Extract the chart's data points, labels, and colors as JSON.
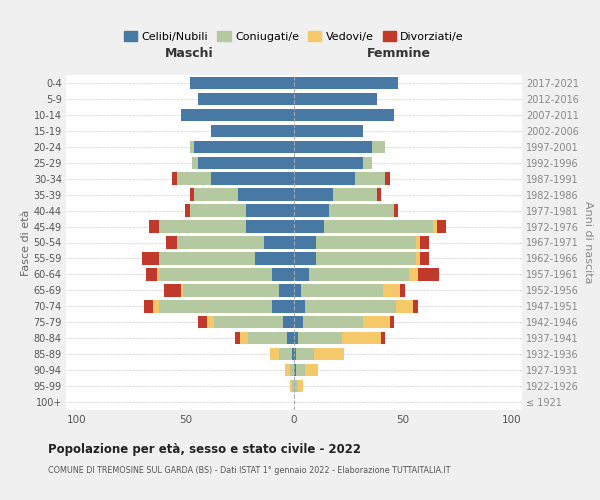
{
  "age_groups": [
    "100+",
    "95-99",
    "90-94",
    "85-89",
    "80-84",
    "75-79",
    "70-74",
    "65-69",
    "60-64",
    "55-59",
    "50-54",
    "45-49",
    "40-44",
    "35-39",
    "30-34",
    "25-29",
    "20-24",
    "15-19",
    "10-14",
    "5-9",
    "0-4"
  ],
  "birth_years": [
    "≤ 1921",
    "1922-1926",
    "1927-1931",
    "1932-1936",
    "1937-1941",
    "1942-1946",
    "1947-1951",
    "1952-1956",
    "1957-1961",
    "1962-1966",
    "1967-1971",
    "1972-1976",
    "1977-1981",
    "1982-1986",
    "1987-1991",
    "1992-1996",
    "1997-2001",
    "2002-2006",
    "2007-2011",
    "2012-2016",
    "2017-2021"
  ],
  "maschi": {
    "celibi": [
      0,
      0,
      0,
      1,
      3,
      5,
      10,
      7,
      10,
      18,
      14,
      22,
      22,
      26,
      38,
      44,
      46,
      38,
      52,
      44,
      48
    ],
    "coniugati": [
      0,
      1,
      2,
      6,
      18,
      32,
      52,
      44,
      52,
      44,
      40,
      40,
      26,
      20,
      16,
      3,
      2,
      0,
      0,
      0,
      0
    ],
    "vedovi": [
      0,
      1,
      2,
      4,
      4,
      3,
      3,
      1,
      1,
      0,
      0,
      0,
      0,
      0,
      0,
      0,
      0,
      0,
      0,
      0,
      0
    ],
    "divorziati": [
      0,
      0,
      0,
      0,
      2,
      4,
      4,
      8,
      5,
      8,
      5,
      5,
      2,
      2,
      2,
      0,
      0,
      0,
      0,
      0,
      0
    ]
  },
  "femmine": {
    "nubili": [
      0,
      0,
      1,
      1,
      2,
      4,
      5,
      3,
      7,
      10,
      10,
      14,
      16,
      18,
      28,
      32,
      36,
      32,
      46,
      38,
      48
    ],
    "coniugate": [
      0,
      2,
      4,
      8,
      20,
      28,
      42,
      38,
      46,
      46,
      46,
      50,
      30,
      20,
      14,
      4,
      6,
      0,
      0,
      0,
      0
    ],
    "vedove": [
      0,
      2,
      6,
      14,
      18,
      12,
      8,
      8,
      4,
      2,
      2,
      2,
      0,
      0,
      0,
      0,
      0,
      0,
      0,
      0,
      0
    ],
    "divorziate": [
      0,
      0,
      0,
      0,
      2,
      2,
      2,
      2,
      10,
      4,
      4,
      4,
      2,
      2,
      2,
      0,
      0,
      0,
      0,
      0,
      0
    ]
  },
  "colors": {
    "celibi": "#4878a4",
    "coniugati": "#b5c9a0",
    "vedovi": "#f5c96a",
    "divorziati": "#c0392b"
  },
  "xlim": 105,
  "title": "Popolazione per età, sesso e stato civile - 2022",
  "subtitle": "COMUNE DI TREMOSINE SUL GARDA (BS) - Dati ISTAT 1° gennaio 2022 - Elaborazione TUTTAITALIA.IT",
  "ylabel_left": "Fasce di età",
  "ylabel_right": "Anni di nascita",
  "xlabel_left": "Maschi",
  "xlabel_right": "Femmine",
  "bg_color": "#f0f0f0",
  "plot_bg": "#ffffff"
}
